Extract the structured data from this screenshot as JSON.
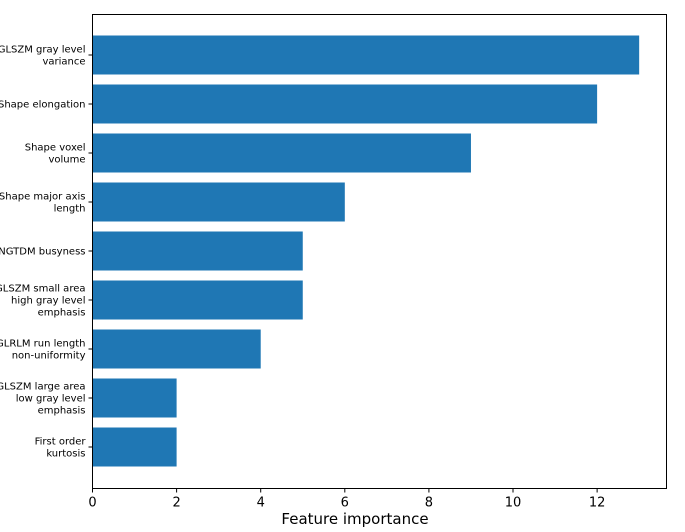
{
  "chart_data": {
    "type": "bar",
    "orientation": "horizontal",
    "title": "",
    "xlabel": "Feature importance",
    "ylabel": "",
    "xlim": [
      0,
      13.65
    ],
    "xticks": [
      0,
      2,
      4,
      6,
      8,
      10,
      12
    ],
    "grid": false,
    "bar_color": "#1f77b4",
    "categories": [
      [
        "GLSZM gray level",
        "variance"
      ],
      [
        "Shape elongation"
      ],
      [
        "Shape voxel",
        "volume"
      ],
      [
        "Shape major axis",
        "length"
      ],
      [
        "NGTDM busyness"
      ],
      [
        "GLSZM small area",
        "high gray level",
        "emphasis"
      ],
      [
        "GLRLM run length",
        "non-uniformity"
      ],
      [
        "GLSZM large area",
        "low gray level",
        "emphasis"
      ],
      [
        "First order",
        "kurtosis"
      ]
    ],
    "values": [
      13,
      12,
      9,
      6,
      5,
      5,
      4,
      2,
      2
    ]
  }
}
